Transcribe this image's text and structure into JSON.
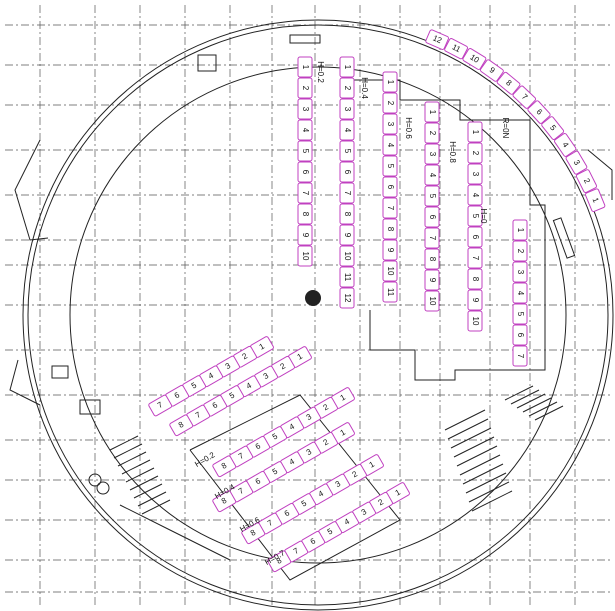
{
  "upper_columns": [
    {
      "label": "H=0.2",
      "seats": [
        1,
        2,
        3,
        4,
        5,
        6,
        7,
        8,
        9,
        10
      ]
    },
    {
      "label": "H=0.4",
      "seats": [
        1,
        2,
        3,
        4,
        5,
        6,
        7,
        8,
        9,
        10,
        11,
        12
      ]
    },
    {
      "label": "H=0.6",
      "seats": [
        1,
        2,
        3,
        4,
        5,
        6,
        7,
        8,
        9,
        10,
        11
      ]
    },
    {
      "label": "H=0.8",
      "seats": [
        1,
        2,
        3,
        4,
        5,
        6,
        7,
        8,
        9,
        10
      ]
    },
    {
      "label": "R=0N",
      "seats": [
        1,
        2,
        3,
        4,
        5,
        6,
        7,
        8,
        9,
        10
      ]
    },
    {
      "label": "H=0",
      "seats": [
        1,
        2,
        3,
        4,
        5,
        6,
        7
      ]
    }
  ],
  "arc_row": {
    "seats": [
      12,
      11,
      10,
      9,
      8,
      7,
      6,
      5,
      4,
      3,
      2,
      1
    ]
  },
  "lower_rows": [
    {
      "seats": [
        1,
        2,
        3,
        4,
        5,
        6,
        7
      ]
    },
    {
      "seats": [
        1,
        2,
        3,
        4,
        5,
        6,
        7,
        8
      ]
    },
    {
      "label": "H=0.2",
      "seats": [
        1,
        2,
        3,
        4,
        5,
        6,
        7,
        8
      ]
    },
    {
      "label": "H=0.4",
      "seats": [
        1,
        2,
        3,
        4,
        5,
        6,
        7,
        8
      ]
    },
    {
      "label": "H=0.6",
      "seats": [
        1,
        2,
        3,
        4,
        5,
        6,
        7,
        8
      ]
    },
    {
      "label": "H=0.7",
      "seats": [
        1,
        2,
        3,
        4,
        5,
        6,
        7,
        8
      ]
    }
  ]
}
